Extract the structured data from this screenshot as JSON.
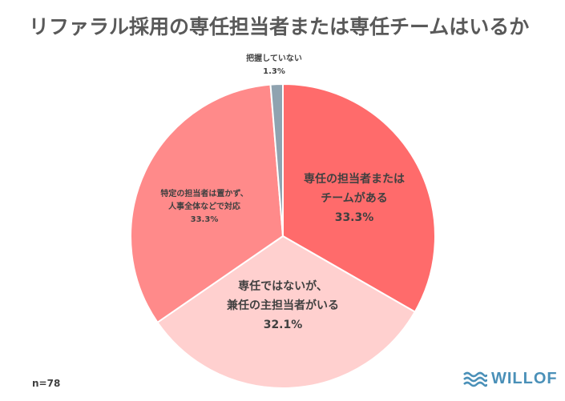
{
  "title": "リファラル採用の専任担当者または専任チームはいるか",
  "sample_size": "n=78",
  "brand": {
    "name": "WILLOF",
    "icon": "waves-logo-icon",
    "color": "#4a90b8"
  },
  "chart_data": {
    "type": "pie",
    "title": "リファラル採用の専任担当者または専任チームはいるか",
    "slices": [
      {
        "lines": [
          "専任の担当者または",
          "チームがある"
        ],
        "pct_label": "33.3%",
        "value": 33.3,
        "color": "#ff6b6b"
      },
      {
        "lines": [
          "専任ではないが、",
          "兼任の主担当者がいる"
        ],
        "pct_label": "32.1%",
        "value": 32.1,
        "color": "#ffd0cf"
      },
      {
        "lines": [
          "特定の担当者は置かず、",
          "人事全体などで対応"
        ],
        "pct_label": "33.3%",
        "value": 33.3,
        "color": "#ff8a8a"
      },
      {
        "lines": [
          "把握していない"
        ],
        "pct_label": "1.3%",
        "value": 1.3,
        "color": "#8fa3b0"
      }
    ]
  }
}
